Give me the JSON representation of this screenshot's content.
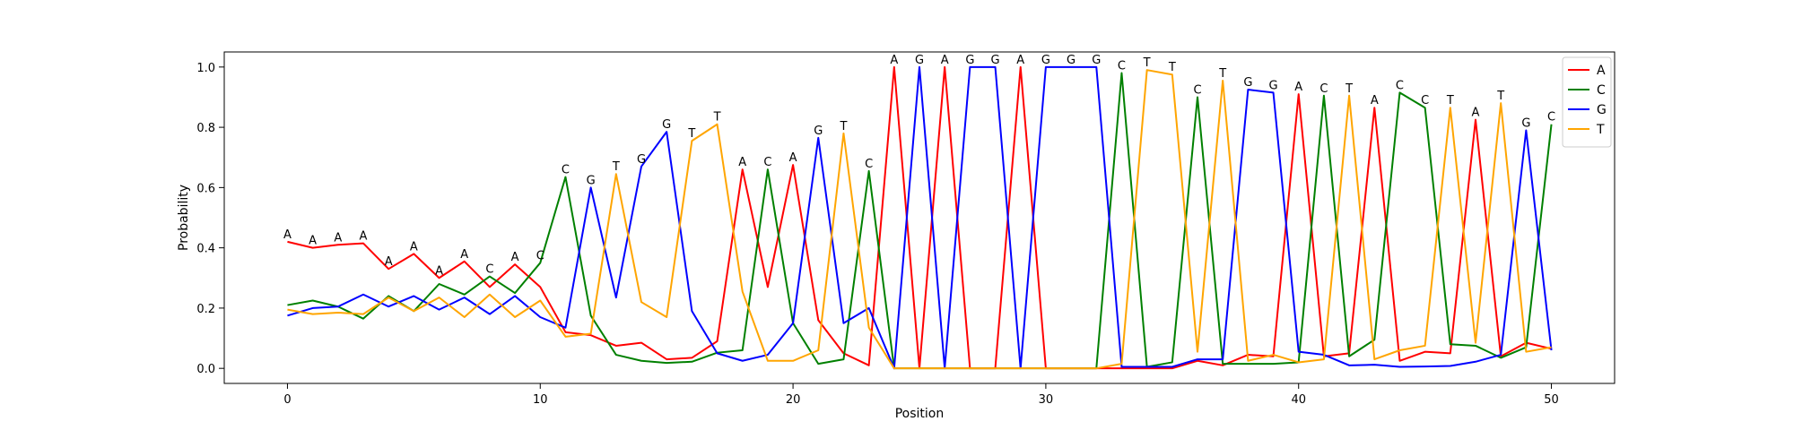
{
  "chart_data": {
    "type": "line",
    "title": "",
    "xlabel": "Position",
    "ylabel": "Probability",
    "xlim": [
      -2.5,
      52.5
    ],
    "ylim": [
      -0.05,
      1.05
    ],
    "x_ticks": [
      0,
      10,
      20,
      30,
      40,
      50
    ],
    "x_tick_labels": [
      "0",
      "10",
      "20",
      "30",
      "40",
      "50"
    ],
    "y_ticks": [
      0.0,
      0.2,
      0.4,
      0.6,
      0.8,
      1.0
    ],
    "y_tick_labels": [
      "0.0",
      "0.2",
      "0.4",
      "0.6",
      "0.8",
      "1.0"
    ],
    "grid": false,
    "legend": "top-right",
    "x": [
      0,
      1,
      2,
      3,
      4,
      5,
      6,
      7,
      8,
      9,
      10,
      11,
      12,
      13,
      14,
      15,
      16,
      17,
      18,
      19,
      20,
      21,
      22,
      23,
      24,
      25,
      26,
      27,
      28,
      29,
      30,
      31,
      32,
      33,
      34,
      35,
      36,
      37,
      38,
      39,
      40,
      41,
      42,
      43,
      44,
      45,
      46,
      47,
      48,
      49,
      50
    ],
    "series": [
      {
        "name": "A",
        "color": "#ff0000",
        "values": [
          0.42,
          0.4,
          0.41,
          0.415,
          0.33,
          0.38,
          0.3,
          0.355,
          0.27,
          0.345,
          0.27,
          0.12,
          0.11,
          0.075,
          0.085,
          0.03,
          0.035,
          0.09,
          0.66,
          0.27,
          0.675,
          0.16,
          0.05,
          0.01,
          1.0,
          0.0,
          1.0,
          0.0,
          0.0,
          1.0,
          0.0,
          0.0,
          0.0,
          0.0,
          0.0,
          0.0,
          0.025,
          0.01,
          0.045,
          0.04,
          0.91,
          0.04,
          0.05,
          0.865,
          0.025,
          0.055,
          0.05,
          0.825,
          0.04,
          0.085,
          0.065
        ]
      },
      {
        "name": "C",
        "color": "#008000",
        "values": [
          0.21,
          0.225,
          0.205,
          0.165,
          0.24,
          0.19,
          0.28,
          0.245,
          0.305,
          0.25,
          0.35,
          0.635,
          0.175,
          0.045,
          0.025,
          0.018,
          0.022,
          0.052,
          0.06,
          0.66,
          0.15,
          0.015,
          0.03,
          0.655,
          0.0,
          0.0,
          0.0,
          0.0,
          0.0,
          0.0,
          0.0,
          0.0,
          0.0,
          0.98,
          0.005,
          0.02,
          0.9,
          0.015,
          0.015,
          0.015,
          0.02,
          0.905,
          0.04,
          0.095,
          0.915,
          0.865,
          0.08,
          0.075,
          0.035,
          0.07,
          0.81
        ]
      },
      {
        "name": "G",
        "color": "#0000ff",
        "values": [
          0.175,
          0.2,
          0.205,
          0.245,
          0.205,
          0.24,
          0.195,
          0.235,
          0.18,
          0.24,
          0.17,
          0.135,
          0.6,
          0.235,
          0.67,
          0.785,
          0.19,
          0.05,
          0.025,
          0.045,
          0.15,
          0.765,
          0.15,
          0.2,
          0.0,
          1.0,
          0.0,
          1.0,
          1.0,
          0.0,
          1.0,
          1.0,
          1.0,
          0.005,
          0.005,
          0.005,
          0.03,
          0.03,
          0.925,
          0.915,
          0.055,
          0.045,
          0.01,
          0.012,
          0.005,
          0.006,
          0.008,
          0.022,
          0.045,
          0.79,
          0.06
        ]
      },
      {
        "name": "T",
        "color": "#ffa500",
        "values": [
          0.195,
          0.18,
          0.185,
          0.18,
          0.235,
          0.19,
          0.235,
          0.17,
          0.245,
          0.17,
          0.225,
          0.105,
          0.115,
          0.645,
          0.22,
          0.17,
          0.755,
          0.81,
          0.255,
          0.025,
          0.025,
          0.06,
          0.78,
          0.135,
          0.0,
          0.0,
          0.0,
          0.0,
          0.0,
          0.0,
          0.0,
          0.0,
          0.0,
          0.015,
          0.99,
          0.975,
          0.055,
          0.955,
          0.025,
          0.045,
          0.02,
          0.03,
          0.905,
          0.03,
          0.06,
          0.075,
          0.865,
          0.085,
          0.88,
          0.055,
          0.07
        ]
      }
    ],
    "annotations": {
      "positions": [
        0,
        1,
        2,
        3,
        4,
        5,
        6,
        7,
        8,
        9,
        10,
        11,
        12,
        13,
        14,
        15,
        16,
        17,
        18,
        19,
        20,
        21,
        22,
        23,
        24,
        25,
        26,
        27,
        28,
        29,
        30,
        31,
        32,
        33,
        34,
        35,
        36,
        37,
        38,
        39,
        40,
        41,
        42,
        43,
        44,
        45,
        46,
        47,
        48,
        49,
        50
      ],
      "labels": [
        "A",
        "A",
        "A",
        "A",
        "A",
        "A",
        "A",
        "A",
        "C",
        "A",
        "C",
        "C",
        "G",
        "T",
        "G",
        "G",
        "T",
        "T",
        "A",
        "C",
        "A",
        "G",
        "T",
        "C",
        "A",
        "G",
        "A",
        "G",
        "G",
        "A",
        "G",
        "G",
        "G",
        "C",
        "T",
        "T",
        "C",
        "T",
        "G",
        "G",
        "A",
        "C",
        "T",
        "A",
        "C",
        "C",
        "T",
        "A",
        "T",
        "G",
        "C"
      ]
    }
  }
}
